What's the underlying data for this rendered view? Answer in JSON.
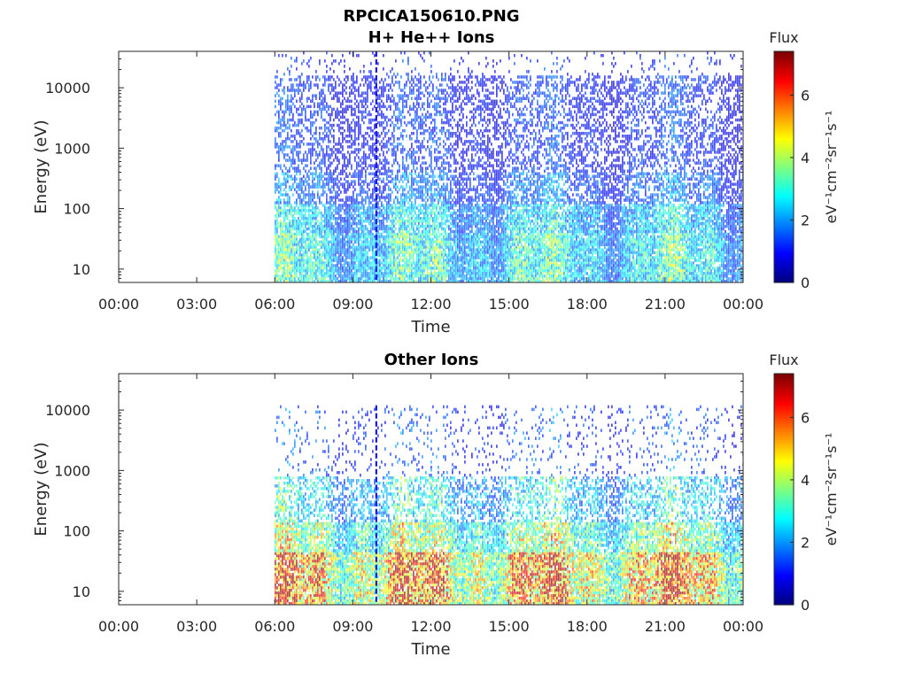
{
  "figure": {
    "title_line1": "RPCICA150610.PNG",
    "title_line2": "H+ He++ Ions"
  },
  "chart_data": [
    {
      "type": "heatmap",
      "title": "H+ He++ Ions",
      "xlabel": "Time",
      "ylabel": "Energy (eV)",
      "x_ticks": [
        "00:00",
        "03:00",
        "06:00",
        "09:00",
        "12:00",
        "15:00",
        "18:00",
        "21:00",
        "00:00"
      ],
      "xlim_hours": [
        0,
        24
      ],
      "y_scale": "log",
      "y_ticks": [
        "10",
        "100",
        "1000",
        "10000"
      ],
      "y_tick_values": [
        10,
        100,
        1000,
        10000
      ],
      "ylim": [
        6,
        40000
      ],
      "data_start_hour": 6.0,
      "data_end_hour": 24.0,
      "vertical_stripe_hour": 9.9,
      "bands": [
        {
          "e_min": 6,
          "e_max": 40,
          "flux": 2.6,
          "density": 0.9
        },
        {
          "e_min": 40,
          "e_max": 120,
          "flux": 2.2,
          "density": 0.8
        },
        {
          "e_min": 120,
          "e_max": 400,
          "flux": 1.5,
          "density": 0.6
        },
        {
          "e_min": 400,
          "e_max": 16000,
          "flux": 1.1,
          "density": 0.45
        },
        {
          "e_min": 16000,
          "e_max": 40000,
          "flux": 1.0,
          "density": 0.08
        }
      ],
      "colorbar": {
        "label": "Flux",
        "unit": "eV⁻¹cm⁻²sr⁻¹s⁻¹",
        "ticks": [
          "0",
          "2",
          "4",
          "6"
        ],
        "tick_values": [
          0,
          2,
          4,
          6
        ],
        "range": [
          0,
          7.4
        ],
        "colormap": "jet"
      },
      "grid": false
    },
    {
      "type": "heatmap",
      "title": "Other Ions",
      "xlabel": "Time",
      "ylabel": "Energy (eV)",
      "x_ticks": [
        "00:00",
        "03:00",
        "06:00",
        "09:00",
        "12:00",
        "15:00",
        "18:00",
        "21:00",
        "00:00"
      ],
      "xlim_hours": [
        0,
        24
      ],
      "y_scale": "log",
      "y_ticks": [
        "10",
        "100",
        "1000",
        "10000"
      ],
      "y_tick_values": [
        10,
        100,
        1000,
        10000
      ],
      "ylim": [
        6,
        40000
      ],
      "data_start_hour": 6.0,
      "data_end_hour": 24.0,
      "vertical_stripe_hour": 9.9,
      "bands": [
        {
          "e_min": 6,
          "e_max": 45,
          "flux": 4.8,
          "density": 0.9
        },
        {
          "e_min": 45,
          "e_max": 140,
          "flux": 3.4,
          "density": 0.8
        },
        {
          "e_min": 140,
          "e_max": 800,
          "flux": 2.4,
          "density": 0.45
        },
        {
          "e_min": 800,
          "e_max": 12000,
          "flux": 1.3,
          "density": 0.1
        }
      ],
      "colorbar": {
        "label": "Flux",
        "unit": "eV⁻¹cm⁻²sr⁻¹s⁻¹",
        "ticks": [
          "0",
          "2",
          "4",
          "6"
        ],
        "tick_values": [
          0,
          2,
          4,
          6
        ],
        "range": [
          0,
          7.4
        ],
        "colormap": "jet"
      },
      "grid": false
    }
  ]
}
